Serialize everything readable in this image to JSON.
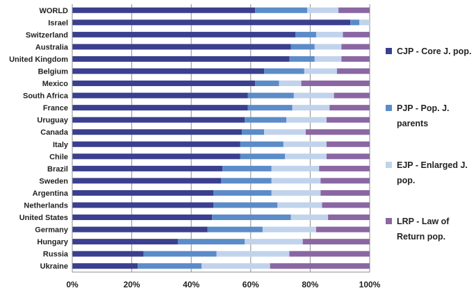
{
  "chart_data": {
    "type": "bar",
    "orientation": "horizontal",
    "stacked": "percent",
    "title": "",
    "xlabel": "",
    "ylabel": "",
    "xlim": [
      0,
      100
    ],
    "x_ticks": [
      "0%",
      "20%",
      "40%",
      "60%",
      "80%",
      "100%"
    ],
    "grid": true,
    "legend_position": "right",
    "categories": [
      "WORLD",
      "Israel",
      "Switzerland",
      "Australia",
      "United Kingdom",
      "Belgium",
      "Mexico",
      "South Africa",
      "France",
      "Uruguay",
      "Canada",
      "Italy",
      "Chile",
      "Brazil",
      "Sweden",
      "Argentina",
      "Netherlands",
      "United States",
      "Germany",
      "Hungary",
      "Russia",
      "Ukraine"
    ],
    "series": [
      {
        "name": "CJP - Core J. pop.",
        "legend_lines": [
          "CJP - Core J. pop."
        ],
        "color": "#3b3f8f",
        "values": [
          61.5,
          93.5,
          75,
          73.5,
          73,
          64.5,
          61.5,
          59,
          59,
          58,
          57,
          56.5,
          56.5,
          50.5,
          50,
          47.5,
          47.5,
          47,
          45.5,
          35.5,
          24,
          22
        ]
      },
      {
        "name": "PJP - Pop. J. parents",
        "legend_lines": [
          "PJP - Pop. J.",
          "parents"
        ],
        "color": "#5b8cc9",
        "values": [
          17.5,
          3,
          7,
          8,
          8.5,
          13.5,
          8,
          15.5,
          15,
          14,
          7.5,
          14.5,
          15,
          16.5,
          17,
          19.5,
          21.5,
          26.5,
          18.5,
          22.5,
          24.5,
          21.5
        ]
      },
      {
        "name": "EJP - Enlarged J. pop.",
        "legend_lines": [
          "EJP - Enlarged J.",
          "pop."
        ],
        "color": "#c1d3ec",
        "values": [
          10.5,
          3.5,
          9,
          9,
          9,
          11,
          7.5,
          13.5,
          12.5,
          13.5,
          14,
          14.5,
          14,
          16,
          16.5,
          16.5,
          15,
          12.5,
          18,
          19.5,
          24.5,
          23
        ]
      },
      {
        "name": "LRP - Law of Return pop.",
        "legend_lines": [
          "LRP - Law of",
          "Return pop."
        ],
        "color": "#8a67a3",
        "values": [
          10.5,
          0,
          9,
          9.5,
          9.5,
          11,
          23,
          12,
          13.5,
          14.5,
          21.5,
          14.5,
          14.5,
          17,
          16.5,
          16.5,
          16,
          14,
          18,
          22.5,
          27,
          33.5
        ]
      }
    ]
  }
}
